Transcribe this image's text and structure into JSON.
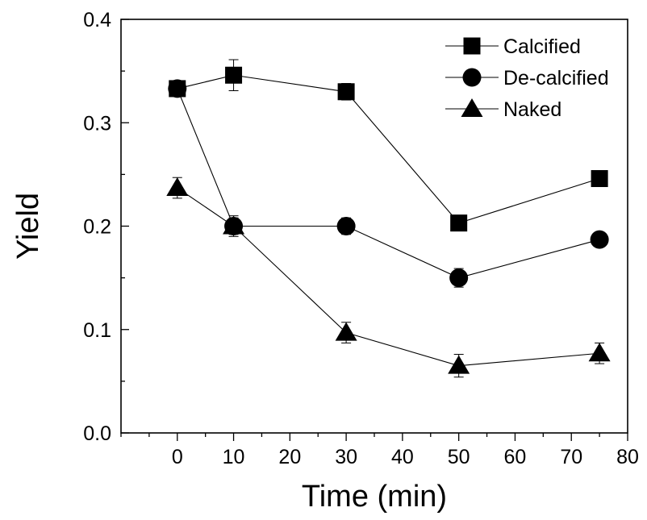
{
  "chart_data": {
    "type": "line",
    "xlabel": "Time (min)",
    "ylabel": "Yield",
    "xlim": [
      -10,
      80
    ],
    "ylim": [
      0.0,
      0.4
    ],
    "xticks": [
      0,
      10,
      20,
      30,
      40,
      50,
      60,
      70,
      80
    ],
    "xtick_labels": [
      "0",
      "10",
      "20",
      "30",
      "40",
      "50",
      "60",
      "70",
      "80"
    ],
    "yticks": [
      0.0,
      0.1,
      0.2,
      0.3,
      0.4
    ],
    "ytick_labels": [
      "0.0",
      "0.1",
      "0.2",
      "0.3",
      "0.4"
    ],
    "grid": false,
    "legend_position": "top-right",
    "series": [
      {
        "name": "Calcified",
        "marker": "square",
        "x": [
          0,
          10,
          30,
          50,
          75
        ],
        "y": [
          0.333,
          0.346,
          0.33,
          0.203,
          0.246
        ],
        "err": [
          0.005,
          0.015,
          0.008,
          0.005,
          0.005
        ]
      },
      {
        "name": "De-calcified",
        "marker": "circle",
        "x": [
          0,
          10,
          30,
          50,
          75
        ],
        "y": [
          0.333,
          0.2,
          0.2,
          0.15,
          0.187
        ],
        "err": [
          0.005,
          0.008,
          0.008,
          0.009,
          0.004
        ]
      },
      {
        "name": "Naked",
        "marker": "triangle",
        "x": [
          0,
          10,
          30,
          50,
          75
        ],
        "y": [
          0.237,
          0.2,
          0.097,
          0.065,
          0.077
        ],
        "err": [
          0.01,
          0.01,
          0.01,
          0.011,
          0.01
        ]
      }
    ]
  }
}
